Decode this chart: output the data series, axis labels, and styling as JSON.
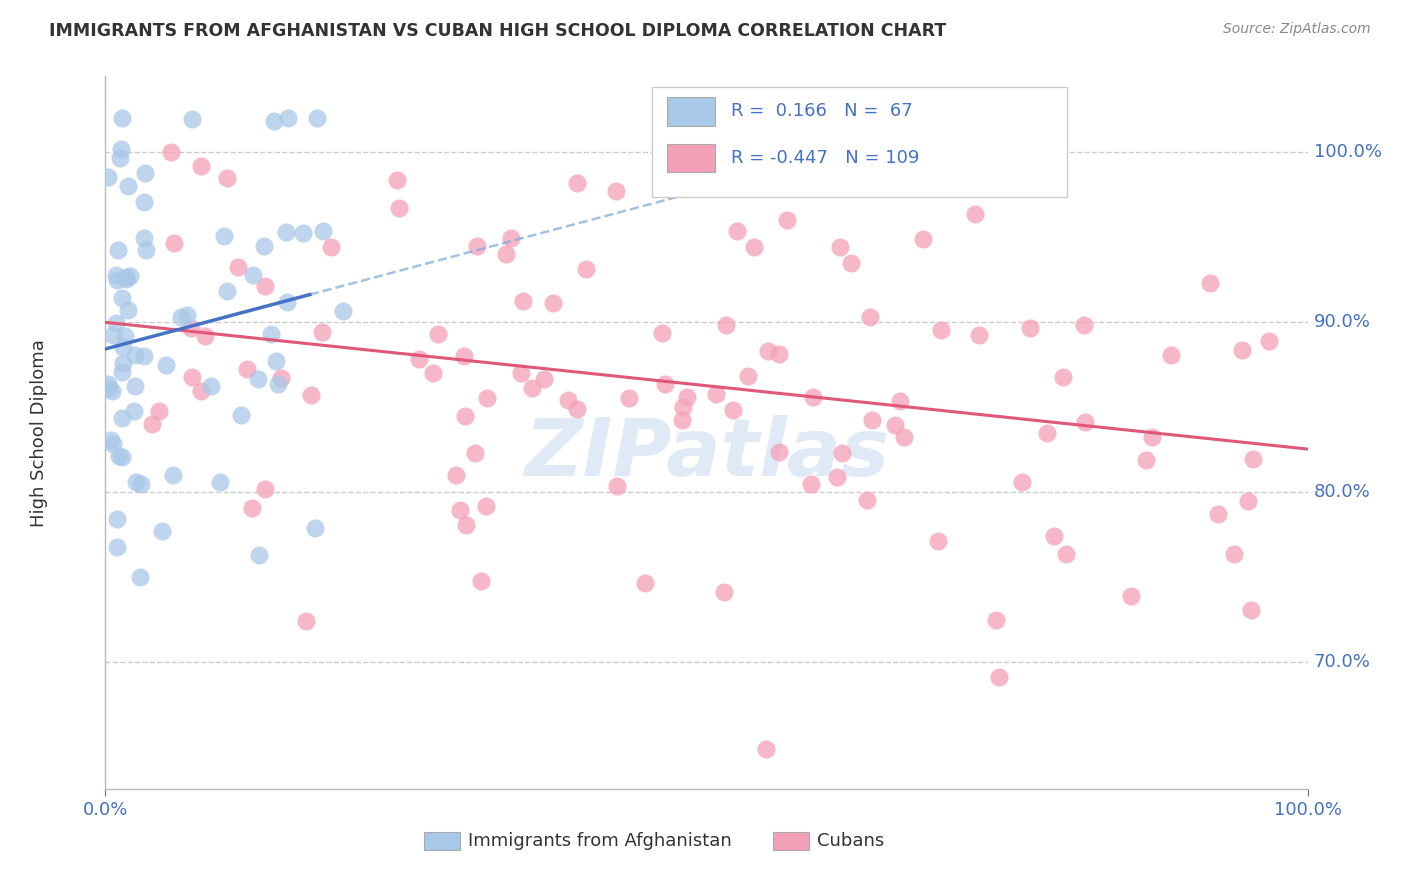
{
  "title": "IMMIGRANTS FROM AFGHANISTAN VS CUBAN HIGH SCHOOL DIPLOMA CORRELATION CHART",
  "source": "Source: ZipAtlas.com",
  "ylabel": "High School Diploma",
  "ytick_labels": [
    "70.0%",
    "80.0%",
    "90.0%",
    "100.0%"
  ],
  "ytick_values": [
    0.7,
    0.8,
    0.9,
    1.0
  ],
  "xrange": [
    0.0,
    1.0
  ],
  "yrange": [
    0.625,
    1.045
  ],
  "legend_label1": "Immigrants from Afghanistan",
  "legend_label2": "Cubans",
  "r1": 0.166,
  "n1": 67,
  "r2": -0.447,
  "n2": 109,
  "color_afghan": "#a8c8e8",
  "color_cuban": "#f4a0b8",
  "color_line_afghan": "#4472c4",
  "color_line_cuban": "#e05878",
  "watermark": "ZIPatlas"
}
